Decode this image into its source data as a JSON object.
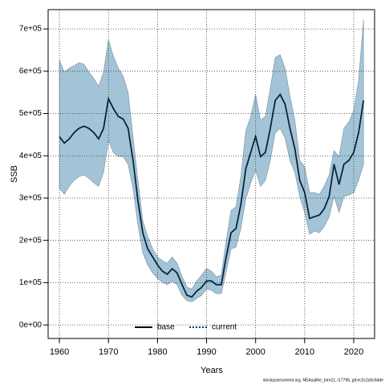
{
  "chart_data": {
    "type": "line",
    "xlabel": "Years",
    "ylabel": "SSB",
    "footnote": "stockassessment.org, NEAsaithe_bmr11, r17795, git:ec2c2a0c6dde",
    "x": [
      1960,
      1961,
      1962,
      1963,
      1964,
      1965,
      1966,
      1967,
      1968,
      1969,
      1970,
      1971,
      1972,
      1973,
      1974,
      1975,
      1976,
      1977,
      1978,
      1979,
      1980,
      1981,
      1982,
      1983,
      1984,
      1985,
      1986,
      1987,
      1988,
      1989,
      1990,
      1991,
      1992,
      1993,
      1994,
      1995,
      1996,
      1997,
      1998,
      1999,
      2000,
      2001,
      2002,
      2003,
      2004,
      2005,
      2006,
      2007,
      2008,
      2009,
      2010,
      2011,
      2012,
      2013,
      2014,
      2015,
      2016,
      2017,
      2018,
      2019,
      2020,
      2021,
      2022
    ],
    "series": [
      {
        "name": "base",
        "color": "#000000",
        "style": "solid",
        "values": [
          445000,
          430000,
          440000,
          455000,
          465000,
          470000,
          465000,
          455000,
          440000,
          465000,
          535000,
          512000,
          493000,
          487000,
          465000,
          390000,
          295000,
          218000,
          180000,
          161000,
          142000,
          127000,
          120000,
          133000,
          123000,
          95000,
          70000,
          66000,
          80000,
          89000,
          104000,
          104000,
          95000,
          95000,
          161000,
          218000,
          228000,
          285000,
          370000,
          408000,
          446000,
          398000,
          408000,
          465000,
          531000,
          545000,
          522000,
          465000,
          417000,
          342000,
          313000,
          252000,
          256000,
          260000,
          275000,
          304000,
          380000,
          332000,
          380000,
          389000,
          408000,
          455000,
          531000
        ]
      },
      {
        "name": "current",
        "color": "#0a3a66",
        "style": "dotted",
        "values": [
          445000,
          430000,
          440000,
          455000,
          465000,
          470000,
          465000,
          455000,
          440000,
          465000,
          535000,
          512000,
          493000,
          487000,
          465000,
          390000,
          295000,
          218000,
          180000,
          161000,
          142000,
          127000,
          120000,
          133000,
          123000,
          95000,
          70000,
          66000,
          80000,
          89000,
          104000,
          104000,
          95000,
          95000,
          161000,
          218000,
          228000,
          285000,
          370000,
          408000,
          446000,
          398000,
          408000,
          465000,
          531000,
          545000,
          522000,
          465000,
          417000,
          342000,
          313000,
          252000,
          256000,
          260000,
          275000,
          304000,
          380000,
          332000,
          380000,
          389000,
          408000,
          455000,
          531000
        ]
      }
    ],
    "band": {
      "color": "#a3c4d6",
      "upper": [
        626000,
        598000,
        607000,
        613000,
        620000,
        617000,
        598000,
        583000,
        564000,
        598000,
        674000,
        636000,
        607000,
        588000,
        550000,
        446000,
        342000,
        247000,
        209000,
        180000,
        161000,
        152000,
        146000,
        161000,
        146000,
        114000,
        89000,
        85000,
        104000,
        118000,
        133000,
        127000,
        114000,
        118000,
        199000,
        271000,
        279000,
        351000,
        459000,
        493000,
        545000,
        484000,
        493000,
        560000,
        632000,
        639000,
        607000,
        541000,
        484000,
        389000,
        374000,
        313000,
        313000,
        309000,
        328000,
        355000,
        412000,
        398000,
        465000,
        480000,
        507000,
        579000,
        721000
      ],
      "lower": [
        323000,
        309000,
        328000,
        342000,
        351000,
        355000,
        347000,
        336000,
        328000,
        361000,
        436000,
        408000,
        398000,
        398000,
        380000,
        323000,
        237000,
        171000,
        142000,
        123000,
        110000,
        101000,
        95000,
        104000,
        95000,
        70000,
        57000,
        55000,
        63000,
        70000,
        85000,
        82000,
        74000,
        74000,
        127000,
        180000,
        184000,
        228000,
        298000,
        336000,
        366000,
        328000,
        342000,
        389000,
        455000,
        465000,
        442000,
        389000,
        361000,
        304000,
        266000,
        214000,
        222000,
        218000,
        233000,
        256000,
        304000,
        266000,
        304000,
        307000,
        313000,
        342000,
        380000
      ]
    },
    "xlim": [
      1957.7,
      2024.25
    ],
    "ylim": [
      -32000,
      745700
    ],
    "xticks": [
      1960,
      1970,
      1980,
      1990,
      2000,
      2010,
      2020
    ],
    "yticks": [
      {
        "value": 0,
        "label": "0e+00"
      },
      {
        "value": 100000,
        "label": "1e+05"
      },
      {
        "value": 200000,
        "label": "2e+05"
      },
      {
        "value": 300000,
        "label": "3e+05"
      },
      {
        "value": 400000,
        "label": "4e+05"
      },
      {
        "value": 500000,
        "label": "5e+05"
      },
      {
        "value": 600000,
        "label": "6e+05"
      },
      {
        "value": 700000,
        "label": "7e+05"
      }
    ],
    "grid": true,
    "legend": "bottom"
  }
}
